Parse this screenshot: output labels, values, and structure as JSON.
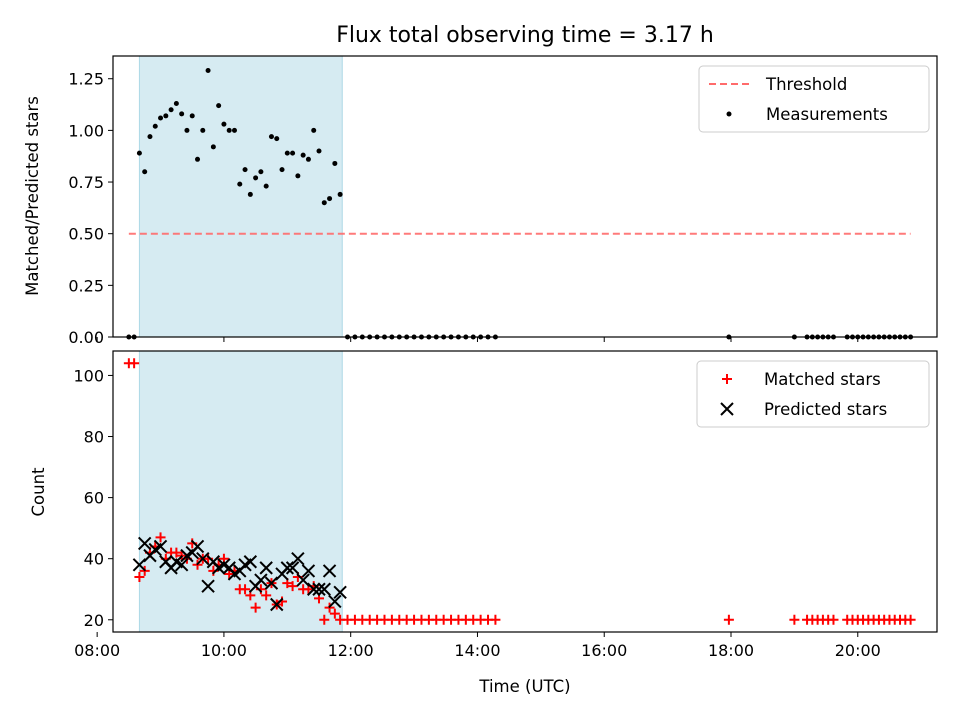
{
  "chart_data": [
    {
      "type": "scatter",
      "title": "Flux total observing time = 3.17 h",
      "ylabel": "Matched/Predicted stars",
      "xlabel": "",
      "xlim": [
        "08:15",
        "21:15"
      ],
      "ylim": [
        0,
        1.36
      ],
      "x_ticks": [
        "08:00",
        "10:00",
        "12:00",
        "14:00",
        "16:00",
        "18:00",
        "20:00"
      ],
      "x_tick_labels_shown": false,
      "y_ticks": [
        0.0,
        0.25,
        0.5,
        0.75,
        1.0,
        1.25
      ],
      "y_tick_labels": [
        "0.00",
        "0.25",
        "0.50",
        "0.75",
        "1.00",
        "1.25"
      ],
      "legend_position": "top-right",
      "legend": [
        "Threshold",
        "Measurements"
      ],
      "shaded_region": {
        "start": "08:40",
        "end": "11:52",
        "color": "#add8e6"
      },
      "threshold": {
        "name": "Threshold",
        "value": 0.5,
        "x_start": "08:30",
        "x_end": "20:50",
        "color": "#ff6b6b",
        "style": "dashed"
      },
      "series": [
        {
          "name": "Measurements",
          "color": "#000000",
          "points": [
            [
              "08:30",
              0.0
            ],
            [
              "08:35",
              0.0
            ],
            [
              "08:40",
              0.89
            ],
            [
              "08:45",
              0.8
            ],
            [
              "08:50",
              0.97
            ],
            [
              "08:55",
              1.02
            ],
            [
              "09:00",
              1.06
            ],
            [
              "09:05",
              1.07
            ],
            [
              "09:10",
              1.1
            ],
            [
              "09:15",
              1.13
            ],
            [
              "09:20",
              1.08
            ],
            [
              "09:25",
              1.0
            ],
            [
              "09:30",
              1.07
            ],
            [
              "09:35",
              0.86
            ],
            [
              "09:40",
              1.0
            ],
            [
              "09:45",
              1.29
            ],
            [
              "09:50",
              0.92
            ],
            [
              "09:55",
              1.12
            ],
            [
              "10:00",
              1.03
            ],
            [
              "10:05",
              1.0
            ],
            [
              "10:10",
              1.0
            ],
            [
              "10:15",
              0.74
            ],
            [
              "10:20",
              0.81
            ],
            [
              "10:25",
              0.69
            ],
            [
              "10:30",
              0.77
            ],
            [
              "10:35",
              0.8
            ],
            [
              "10:40",
              0.73
            ],
            [
              "10:45",
              0.97
            ],
            [
              "10:50",
              0.96
            ],
            [
              "10:55",
              0.81
            ],
            [
              "11:00",
              0.89
            ],
            [
              "11:05",
              0.89
            ],
            [
              "11:10",
              0.78
            ],
            [
              "11:15",
              0.88
            ],
            [
              "11:20",
              0.86
            ],
            [
              "11:25",
              1.0
            ],
            [
              "11:30",
              0.9
            ],
            [
              "11:35",
              0.65
            ],
            [
              "11:40",
              0.67
            ],
            [
              "11:45",
              0.84
            ],
            [
              "11:50",
              0.69
            ],
            [
              "11:57",
              0.0
            ],
            [
              "12:04",
              0.0
            ],
            [
              "12:11",
              0.0
            ],
            [
              "12:18",
              0.0
            ],
            [
              "12:25",
              0.0
            ],
            [
              "12:32",
              0.0
            ],
            [
              "12:39",
              0.0
            ],
            [
              "12:46",
              0.0
            ],
            [
              "12:53",
              0.0
            ],
            [
              "13:00",
              0.0
            ],
            [
              "13:07",
              0.0
            ],
            [
              "13:14",
              0.0
            ],
            [
              "13:21",
              0.0
            ],
            [
              "13:28",
              0.0
            ],
            [
              "13:35",
              0.0
            ],
            [
              "13:42",
              0.0
            ],
            [
              "13:49",
              0.0
            ],
            [
              "13:56",
              0.0
            ],
            [
              "14:03",
              0.0
            ],
            [
              "14:10",
              0.0
            ],
            [
              "14:17",
              0.0
            ],
            [
              "17:58",
              0.0
            ],
            [
              "19:00",
              0.0
            ],
            [
              "19:12",
              0.0
            ],
            [
              "19:17",
              0.0
            ],
            [
              "19:22",
              0.0
            ],
            [
              "19:27",
              0.0
            ],
            [
              "19:32",
              0.0
            ],
            [
              "19:37",
              0.0
            ],
            [
              "19:50",
              0.0
            ],
            [
              "19:55",
              0.0
            ],
            [
              "20:00",
              0.0
            ],
            [
              "20:05",
              0.0
            ],
            [
              "20:10",
              0.0
            ],
            [
              "20:15",
              0.0
            ],
            [
              "20:20",
              0.0
            ],
            [
              "20:25",
              0.0
            ],
            [
              "20:30",
              0.0
            ],
            [
              "20:35",
              0.0
            ],
            [
              "20:40",
              0.0
            ],
            [
              "20:45",
              0.0
            ],
            [
              "20:50",
              0.0
            ]
          ]
        }
      ]
    },
    {
      "type": "scatter",
      "title": "",
      "xlabel": "Time (UTC)",
      "ylabel": "Count",
      "xlim": [
        "08:15",
        "21:15"
      ],
      "ylim": [
        16,
        108
      ],
      "x_ticks": [
        "08:00",
        "10:00",
        "12:00",
        "14:00",
        "16:00",
        "18:00",
        "20:00"
      ],
      "x_tick_labels": [
        "08:00",
        "10:00",
        "12:00",
        "14:00",
        "16:00",
        "18:00",
        "20:00"
      ],
      "y_ticks": [
        20,
        40,
        60,
        80,
        100
      ],
      "y_tick_labels": [
        "20",
        "40",
        "60",
        "80",
        "100"
      ],
      "legend_position": "top-right",
      "legend": [
        "Matched stars",
        "Predicted stars"
      ],
      "shaded_region": {
        "start": "08:40",
        "end": "11:52",
        "color": "#add8e6"
      },
      "series": [
        {
          "name": "Matched stars",
          "marker": "plus",
          "color": "#ff0000",
          "points": [
            [
              "08:30",
              104
            ],
            [
              "08:35",
              104
            ],
            [
              "08:40",
              34
            ],
            [
              "08:45",
              36
            ],
            [
              "08:50",
              42
            ],
            [
              "08:55",
              44
            ],
            [
              "09:00",
              47
            ],
            [
              "09:05",
              40
            ],
            [
              "09:10",
              42
            ],
            [
              "09:15",
              42
            ],
            [
              "09:20",
              41
            ],
            [
              "09:25",
              40
            ],
            [
              "09:30",
              45
            ],
            [
              "09:35",
              38
            ],
            [
              "09:40",
              40
            ],
            [
              "09:45",
              40
            ],
            [
              "09:50",
              36
            ],
            [
              "09:55",
              38
            ],
            [
              "10:00",
              40
            ],
            [
              "10:05",
              35
            ],
            [
              "10:10",
              36
            ],
            [
              "10:15",
              30
            ],
            [
              "10:20",
              30
            ],
            [
              "10:25",
              28
            ],
            [
              "10:30",
              24
            ],
            [
              "10:35",
              30
            ],
            [
              "10:40",
              28
            ],
            [
              "10:45",
              32
            ],
            [
              "10:50",
              25
            ],
            [
              "10:55",
              26
            ],
            [
              "11:00",
              32
            ],
            [
              "11:05",
              31
            ],
            [
              "11:10",
              34
            ],
            [
              "11:15",
              30
            ],
            [
              "11:20",
              30
            ],
            [
              "11:25",
              31
            ],
            [
              "11:30",
              27
            ],
            [
              "11:35",
              20
            ],
            [
              "11:40",
              24
            ],
            [
              "11:45",
              22
            ],
            [
              "11:50",
              20
            ],
            [
              "11:57",
              20
            ],
            [
              "12:04",
              20
            ],
            [
              "12:11",
              20
            ],
            [
              "12:18",
              20
            ],
            [
              "12:25",
              20
            ],
            [
              "12:32",
              20
            ],
            [
              "12:39",
              20
            ],
            [
              "12:46",
              20
            ],
            [
              "12:53",
              20
            ],
            [
              "13:00",
              20
            ],
            [
              "13:07",
              20
            ],
            [
              "13:14",
              20
            ],
            [
              "13:21",
              20
            ],
            [
              "13:28",
              20
            ],
            [
              "13:35",
              20
            ],
            [
              "13:42",
              20
            ],
            [
              "13:49",
              20
            ],
            [
              "13:56",
              20
            ],
            [
              "14:03",
              20
            ],
            [
              "14:10",
              20
            ],
            [
              "14:17",
              20
            ],
            [
              "17:58",
              20
            ],
            [
              "19:00",
              20
            ],
            [
              "19:12",
              20
            ],
            [
              "19:17",
              20
            ],
            [
              "19:22",
              20
            ],
            [
              "19:27",
              20
            ],
            [
              "19:32",
              20
            ],
            [
              "19:37",
              20
            ],
            [
              "19:50",
              20
            ],
            [
              "19:55",
              20
            ],
            [
              "20:00",
              20
            ],
            [
              "20:05",
              20
            ],
            [
              "20:10",
              20
            ],
            [
              "20:15",
              20
            ],
            [
              "20:20",
              20
            ],
            [
              "20:25",
              20
            ],
            [
              "20:30",
              20
            ],
            [
              "20:35",
              20
            ],
            [
              "20:40",
              20
            ],
            [
              "20:45",
              20
            ],
            [
              "20:50",
              20
            ]
          ]
        },
        {
          "name": "Predicted stars",
          "marker": "x",
          "color": "#000000",
          "points": [
            [
              "08:40",
              38
            ],
            [
              "08:45",
              45
            ],
            [
              "08:50",
              41
            ],
            [
              "08:55",
              43
            ],
            [
              "09:00",
              44
            ],
            [
              "09:05",
              39
            ],
            [
              "09:10",
              37
            ],
            [
              "09:15",
              39
            ],
            [
              "09:20",
              38
            ],
            [
              "09:25",
              41
            ],
            [
              "09:30",
              42
            ],
            [
              "09:35",
              44
            ],
            [
              "09:40",
              40
            ],
            [
              "09:45",
              31
            ],
            [
              "09:50",
              39
            ],
            [
              "09:55",
              37
            ],
            [
              "10:00",
              38
            ],
            [
              "10:05",
              37
            ],
            [
              "10:10",
              35
            ],
            [
              "10:15",
              36
            ],
            [
              "10:20",
              38
            ],
            [
              "10:25",
              39
            ],
            [
              "10:30",
              31
            ],
            [
              "10:35",
              33
            ],
            [
              "10:40",
              37
            ],
            [
              "10:45",
              32
            ],
            [
              "10:50",
              25
            ],
            [
              "10:55",
              35
            ],
            [
              "11:00",
              37
            ],
            [
              "11:05",
              37
            ],
            [
              "11:10",
              40
            ],
            [
              "11:15",
              33
            ],
            [
              "11:20",
              36
            ],
            [
              "11:25",
              30
            ],
            [
              "11:30",
              30
            ],
            [
              "11:35",
              30
            ],
            [
              "11:40",
              36
            ],
            [
              "11:45",
              26
            ],
            [
              "11:50",
              29
            ]
          ]
        }
      ]
    }
  ]
}
